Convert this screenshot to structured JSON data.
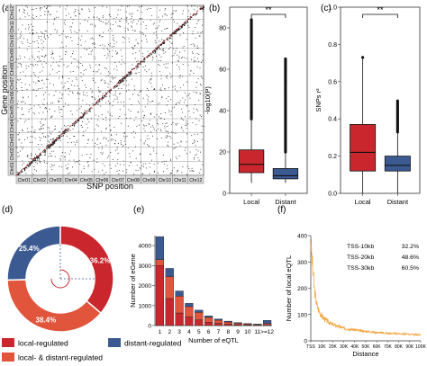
{
  "chart_data": [
    {
      "panel": "(a)",
      "type": "scatter",
      "xlabel": "SNP position",
      "ylabel": "Gene position",
      "categories": [
        "Chr01",
        "Chr02",
        "Chr03",
        "Chr04",
        "Chr05",
        "Chr06",
        "Chr07",
        "Chr08",
        "Chr09",
        "Chr10",
        "Chr11",
        "Chr12"
      ],
      "note_points": "dense eQTL dot matrix; diagonal band of cis-eQTL"
    },
    {
      "panel": "(b)",
      "type": "box",
      "categories": [
        "Local",
        "Distant"
      ],
      "ylabel": "-log10(P)",
      "ylim": [
        0,
        90
      ],
      "yticks": [
        0,
        20,
        40,
        60,
        80
      ],
      "significance": "**",
      "colors": [
        "#c9272d",
        "#3c5a92"
      ],
      "boxes": [
        {
          "name": "Local",
          "q1": 10,
          "median": 14,
          "q3": 21,
          "whisker_low": 5,
          "whisker_high": 36,
          "outlier_max": 84
        },
        {
          "name": "Distant",
          "q1": 7,
          "median": 8.5,
          "q3": 12,
          "whisker_low": 5,
          "whisker_high": 20,
          "outlier_max": 65
        }
      ]
    },
    {
      "panel": "(c)",
      "type": "box",
      "categories": [
        "Local",
        "Distant"
      ],
      "ylabel": "SNPs r²",
      "ylim": [
        0,
        1
      ],
      "yticks": [
        0.0,
        0.2,
        0.4,
        0.6,
        0.8,
        1.0
      ],
      "significance": "**",
      "colors": [
        "#c9272d",
        "#3c5a92"
      ],
      "boxes": [
        {
          "name": "Local",
          "q1": 0.12,
          "median": 0.22,
          "q3": 0.37,
          "whisker_low": 0.0,
          "whisker_high": 0.73,
          "outlier_max": 0.73
        },
        {
          "name": "Distant",
          "q1": 0.12,
          "median": 0.15,
          "q3": 0.2,
          "whisker_low": 0.0,
          "whisker_high": 0.33,
          "outlier_max": 0.5
        }
      ]
    },
    {
      "panel": "(d)",
      "type": "pie",
      "labels": [
        "local-regulated",
        "distant-regulated",
        "local- & distant-regulated"
      ],
      "values": [
        36.2,
        25.4,
        38.4
      ],
      "value_labels": [
        "36.2%",
        "25.4%",
        "38.4%"
      ],
      "colors": [
        "#c9272d",
        "#3c5a92",
        "#e0553b"
      ]
    },
    {
      "panel": "(e)",
      "type": "bar",
      "categories": [
        "1",
        "2",
        "3",
        "4",
        "5",
        "6",
        "7",
        "8",
        "9",
        "10",
        "11",
        ">=12"
      ],
      "xlabel": "Number of eQTL",
      "ylabel": "Number of eGene",
      "ylim": [
        0,
        4500
      ],
      "yticks": [
        0,
        1000,
        2000,
        3000,
        4000
      ],
      "series": [
        {
          "name": "local-regulated",
          "values": [
            3000,
            1350,
            630,
            430,
            280,
            170,
            110,
            70,
            45,
            30,
            20,
            40
          ]
        },
        {
          "name": "local- & distant-regulated",
          "values": [
            300,
            1100,
            840,
            520,
            380,
            240,
            160,
            110,
            70,
            45,
            30,
            60
          ]
        },
        {
          "name": "distant-regulated",
          "values": [
            1150,
            410,
            260,
            160,
            110,
            70,
            55,
            40,
            30,
            25,
            20,
            160
          ]
        }
      ],
      "colors": [
        "#c9272d",
        "#e0553b",
        "#3c5a92"
      ]
    },
    {
      "panel": "(f)",
      "type": "line",
      "xlabel": "Distance",
      "ylabel": "Number of local eQTL",
      "ylim": [
        0,
        400
      ],
      "yticks": [
        0,
        100,
        200,
        300,
        400
      ],
      "categories": [
        "TSS",
        "10K",
        "20K",
        "30K",
        "40K",
        "50K",
        "60K",
        "70K",
        "80K",
        "90K",
        "100K"
      ],
      "color": "#f0a23a",
      "annotations": [
        {
          "label": "TSS-10kb",
          "value": "32.2%"
        },
        {
          "label": "TSS-20kb",
          "value": "48.6%"
        },
        {
          "label": "TSS-30kb",
          "value": "60.5%"
        }
      ],
      "x": [
        0,
        1,
        2,
        3,
        4,
        5,
        6,
        8,
        10,
        12,
        15,
        20,
        25,
        30,
        35,
        40,
        45,
        50,
        55,
        60,
        65,
        70,
        75,
        80,
        85,
        90,
        95,
        100
      ],
      "y": [
        380,
        320,
        260,
        210,
        175,
        150,
        130,
        110,
        95,
        85,
        75,
        62,
        55,
        48,
        45,
        42,
        38,
        36,
        34,
        32,
        30,
        29,
        28,
        27,
        26,
        25,
        24,
        23
      ]
    }
  ],
  "legend": {
    "items": [
      {
        "label": "local-regulated",
        "color": "#c9272d"
      },
      {
        "label": "distant-regulated",
        "color": "#3c5a92"
      },
      {
        "label": "local- & distant-regulated",
        "color": "#e0553b"
      }
    ]
  },
  "panel_labels": [
    "(a)",
    "(b)",
    "(c)",
    "(d)",
    "(e)",
    "(f)"
  ]
}
